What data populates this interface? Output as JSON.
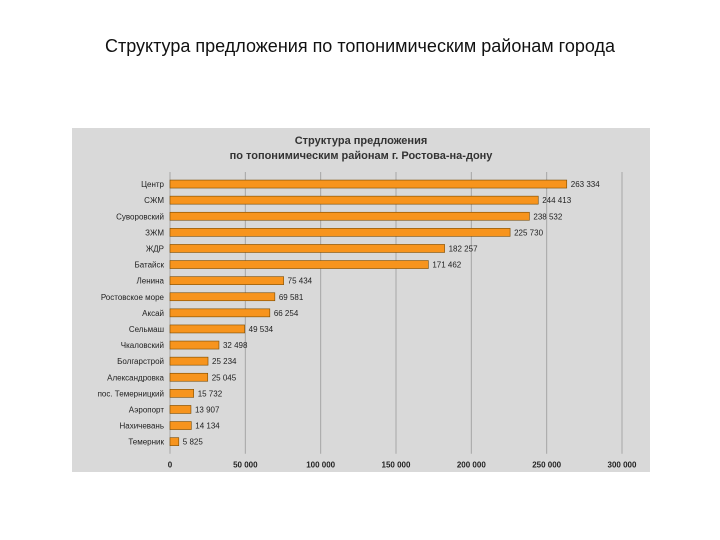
{
  "slide": {
    "title": "Структура предложения по топонимическим районам города"
  },
  "chart_data": {
    "type": "bar",
    "orientation": "horizontal",
    "title_lines": [
      "Структура предложения",
      "по топонимическим районам г. Ростова-на-дону"
    ],
    "categories": [
      "Центр",
      "СЖМ",
      "Суворовский",
      "ЗЖМ",
      "ЖДР",
      "Батайск",
      "Ленина",
      "Ростовское море",
      "Аксай",
      "Сельмаш",
      "Чкаловский",
      "Болгарстрой",
      "Александровка",
      "пос. Темерницкий",
      "Аэропорт",
      "Нахичевань",
      "Темерник"
    ],
    "values": [
      263334,
      244413,
      238532,
      225730,
      182257,
      171462,
      75434,
      69581,
      66254,
      49534,
      32498,
      25234,
      25045,
      15732,
      13907,
      14134,
      5825
    ],
    "value_labels": [
      "263 334",
      "244 413",
      "238 532",
      "225 730",
      "182 257",
      "171 462",
      "75 434",
      "69 581",
      "66 254",
      "49 534",
      "32 498",
      "25 234",
      "25 045",
      "15 732",
      "13 907",
      "14 134",
      "5 825"
    ],
    "xlim": [
      0,
      300000
    ],
    "x_ticks": [
      0,
      50000,
      100000,
      150000,
      200000,
      250000,
      300000
    ],
    "x_tick_labels": [
      "0",
      "50 000",
      "100 000",
      "150 000",
      "200 000",
      "250 000",
      "300 000"
    ],
    "grid": true,
    "legend": "none",
    "colors": {
      "bar": "#f7941d",
      "panel": "#d9d9d9",
      "grid": "#a6a6a6"
    }
  }
}
